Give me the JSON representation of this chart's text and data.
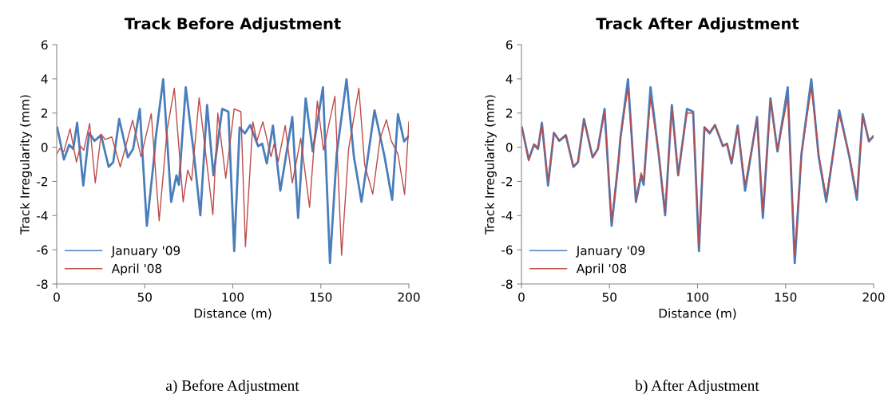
{
  "chart_data": [
    {
      "type": "line",
      "title": "Track Before Adjustment",
      "xlabel": "Distance (m)",
      "ylabel": "Track Irregularity (mm)",
      "xlim": [
        0,
        200
      ],
      "xticks": [
        0,
        50,
        100,
        150,
        200
      ],
      "ylim": [
        -8,
        6
      ],
      "yticks": [
        -8,
        -6,
        -4,
        -2,
        0,
        2,
        4,
        6
      ],
      "grid": false,
      "legend": "bottom left",
      "marker": "none",
      "line_style": "solid",
      "annotations": [
        "a) Before Adjustment"
      ],
      "series": [
        {
          "name": "January '09",
          "color": "#4a7ebb",
          "x": [
            0.3,
            4.1,
            7.1,
            9.4,
            11.6,
            15.1,
            18.4,
            21.5,
            25.2,
            29.5,
            32.1,
            35.5,
            40.4,
            43.4,
            47.2,
            51.2,
            55.2,
            56.2,
            60.5,
            65,
            68,
            69.4,
            73.3,
            78.1,
            81.6,
            85.4,
            89,
            94,
            97.5,
            100.8,
            103.9,
            106.9,
            109.9,
            114.4,
            116.7,
            119.3,
            122.8,
            127,
            133.8,
            137.1,
            141.4,
            145.4,
            151.2,
            155.2,
            159,
            164.6,
            168.8,
            173.1,
            180.5,
            186.2,
            190.5,
            193.8,
            197.3,
            199.9
          ],
          "values": [
            1.15,
            -0.72,
            0.14,
            -0.1,
            1.43,
            -2.24,
            0.84,
            0.37,
            0.71,
            -1.15,
            -0.87,
            1.65,
            -0.59,
            -0.1,
            2.24,
            -4.6,
            -0.72,
            0.53,
            3.98,
            -3.2,
            -1.65,
            -2.2,
            3.51,
            -0.56,
            -3.98,
            2.47,
            -1.65,
            2.24,
            2.08,
            -6.08,
            1.15,
            0.81,
            1.3,
            0.06,
            0.21,
            -0.95,
            1.27,
            -2.55,
            1.77,
            -4.14,
            2.86,
            -0.25,
            3.51,
            -6.78,
            -0.41,
            3.98,
            -0.56,
            -3.2,
            2.16,
            -0.56,
            -3.08,
            1.93,
            0.34,
            0.65
          ]
        },
        {
          "name": "April '08",
          "color": "#be4b48",
          "x": [
            0,
            1.8,
            4.1,
            7.6,
            11.2,
            13.5,
            15.4,
            18.7,
            21.9,
            25.2,
            27.5,
            31.3,
            36.1,
            43.1,
            47.9,
            53.7,
            58.2,
            62.7,
            66.8,
            71.8,
            74.4,
            76.6,
            80.9,
            88.7,
            91.5,
            96,
            100.8,
            104.6,
            107.2,
            111.4,
            113.7,
            117.1,
            121.7,
            123.5,
            125.8,
            129.8,
            133.8,
            138.6,
            143.6,
            148,
            151.5,
            158,
            161.8,
            165.8,
            171.6,
            174.9,
            179.5,
            183.7,
            187.3,
            190,
            193.8,
            197.6,
            200
          ],
          "values": [
            -0.41,
            -0.07,
            -0.25,
            1.07,
            -0.87,
            0.06,
            -0.17,
            1.38,
            -2.09,
            0.76,
            0.45,
            0.6,
            -1.15,
            1.58,
            -0.56,
            1.96,
            -4.3,
            0.99,
            3.45,
            -3.2,
            -1.34,
            -1.96,
            2.89,
            -3.95,
            2.0,
            -1.81,
            2.24,
            2.08,
            -5.82,
            1.49,
            0.37,
            1.49,
            -0.56,
            0.21,
            -0.84,
            1.27,
            -2.09,
            0.53,
            -3.52,
            2.7,
            -0.17,
            2.98,
            -6.32,
            -0.1,
            3.45,
            -1.03,
            -2.74,
            0.53,
            1.61,
            0.37,
            -0.41,
            -2.77,
            1.49
          ]
        }
      ]
    },
    {
      "type": "line",
      "title": "Track After Adjustment",
      "xlabel": "Distance (m)",
      "ylabel": "Track Irregularity (mm)",
      "xlim": [
        0,
        200
      ],
      "xticks": [
        0,
        50,
        100,
        150,
        200
      ],
      "ylim": [
        -8,
        6
      ],
      "yticks": [
        -8,
        -6,
        -4,
        -2,
        0,
        2,
        4,
        6
      ],
      "grid": false,
      "legend": "bottom left",
      "marker": "none",
      "line_style": "solid",
      "annotations": [
        "b) After Adjustment"
      ],
      "series": [
        {
          "name": "January '09",
          "color": "#4a7ebb",
          "x": [
            0.3,
            4.1,
            7.1,
            9.4,
            11.6,
            15.1,
            18.4,
            21.5,
            25.2,
            29.5,
            32.1,
            35.5,
            40.4,
            43.4,
            47.2,
            51.2,
            55.2,
            56.2,
            60.5,
            65,
            68,
            69.4,
            73.3,
            78.1,
            81.6,
            85.4,
            89,
            94,
            97.5,
            100.8,
            103.9,
            106.9,
            109.9,
            114.4,
            116.7,
            119.3,
            122.8,
            127,
            133.8,
            137.1,
            141.4,
            145.4,
            151.2,
            155.2,
            159,
            164.6,
            168.8,
            173.1,
            180.5,
            186.2,
            190.5,
            193.8,
            197.3,
            199.9
          ],
          "values": [
            1.15,
            -0.72,
            0.14,
            -0.1,
            1.43,
            -2.24,
            0.84,
            0.37,
            0.71,
            -1.15,
            -0.87,
            1.65,
            -0.59,
            -0.1,
            2.24,
            -4.6,
            -0.72,
            0.53,
            3.98,
            -3.2,
            -1.65,
            -2.2,
            3.51,
            -0.56,
            -3.98,
            2.47,
            -1.65,
            2.24,
            2.08,
            -6.08,
            1.15,
            0.81,
            1.3,
            0.06,
            0.21,
            -0.95,
            1.27,
            -2.55,
            1.77,
            -4.14,
            2.86,
            -0.25,
            3.51,
            -6.78,
            -0.41,
            3.98,
            -0.56,
            -3.2,
            2.16,
            -0.56,
            -3.08,
            1.93,
            0.34,
            0.65
          ]
        },
        {
          "name": "April '08",
          "color": "#be4b48",
          "x": [
            0.3,
            4.1,
            7.1,
            9.4,
            11.6,
            15.1,
            18.4,
            21.5,
            25.2,
            29.5,
            32.1,
            35.5,
            40.4,
            43.4,
            47.2,
            51.2,
            55.2,
            56.2,
            60.5,
            65,
            68,
            69.4,
            73.3,
            78.1,
            81.6,
            85.4,
            89,
            94,
            97.5,
            100.8,
            103.9,
            106.9,
            109.9,
            114.4,
            116.7,
            119.3,
            122.8,
            127,
            133.8,
            137.1,
            141.4,
            145.4,
            151.2,
            155.2,
            159,
            164.6,
            168.8,
            173.1,
            180.5,
            186.2,
            190.5,
            193.8,
            197.3,
            199.9
          ],
          "values": [
            1.1,
            -0.8,
            0.2,
            0.0,
            1.3,
            -2.0,
            0.85,
            0.4,
            0.7,
            -1.1,
            -0.85,
            1.6,
            -0.6,
            -0.1,
            2.1,
            -4.4,
            -0.6,
            0.5,
            3.5,
            -3.0,
            -1.5,
            -2.0,
            2.9,
            -0.5,
            -3.8,
            2.3,
            -1.6,
            2.0,
            2.0,
            -5.8,
            1.2,
            0.9,
            1.3,
            0.1,
            0.2,
            -0.9,
            1.2,
            -2.2,
            1.6,
            -3.8,
            2.7,
            -0.2,
            2.9,
            -6.3,
            -0.4,
            3.5,
            -0.4,
            -2.9,
            1.9,
            -0.5,
            -2.8,
            1.8,
            0.4,
            0.65
          ]
        }
      ]
    }
  ]
}
